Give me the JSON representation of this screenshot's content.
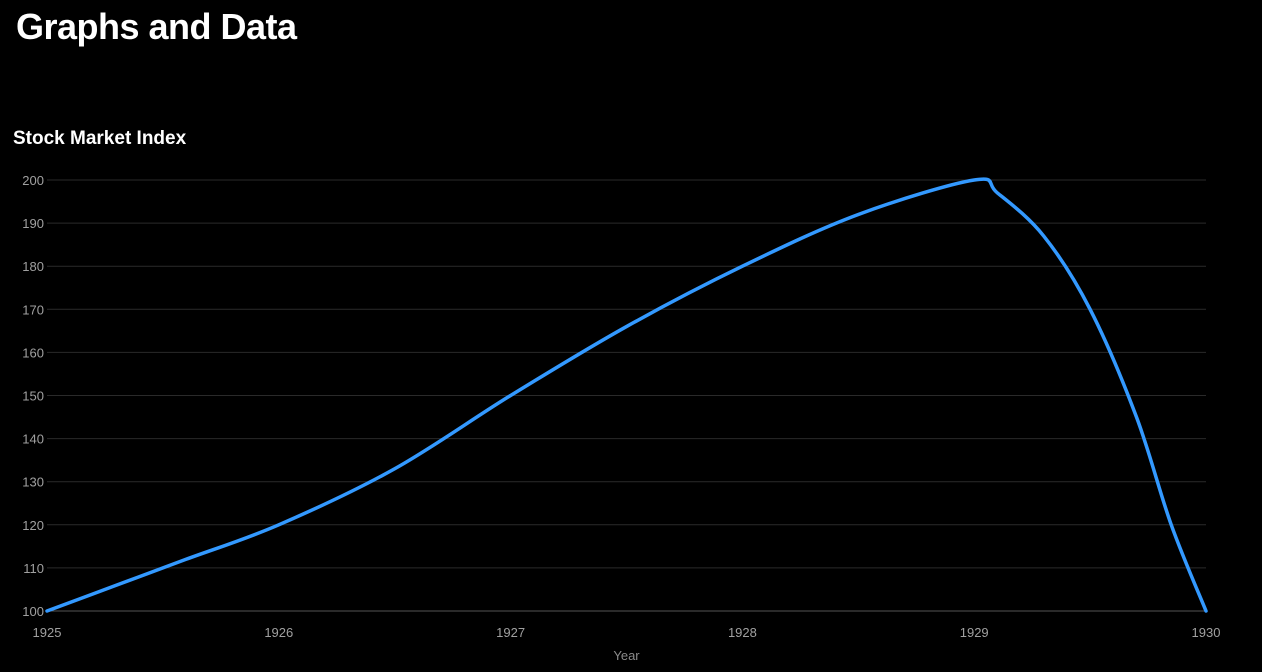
{
  "page": {
    "title": "Graphs and Data"
  },
  "colors": {
    "background": "#000000",
    "line": "#3399ff",
    "grid": "#2a2a2a",
    "tick_text": "#a0a0a0"
  },
  "chart_data": {
    "type": "line",
    "title": "Stock Market Index",
    "xlabel": "Year",
    "ylabel": "",
    "xlim": [
      1925,
      1930
    ],
    "ylim": [
      100,
      200
    ],
    "x_ticks": [
      1925,
      1926,
      1927,
      1928,
      1929,
      1930
    ],
    "y_ticks": [
      100,
      110,
      120,
      130,
      140,
      150,
      160,
      170,
      180,
      190,
      200
    ],
    "grid": true,
    "legend": "none",
    "series": [
      {
        "color": "#3399ff",
        "points": [
          {
            "x": 1925.0,
            "y": 100
          },
          {
            "x": 1925.3,
            "y": 106
          },
          {
            "x": 1925.6,
            "y": 112
          },
          {
            "x": 1926.0,
            "y": 120
          },
          {
            "x": 1926.5,
            "y": 133
          },
          {
            "x": 1927.0,
            "y": 150
          },
          {
            "x": 1927.5,
            "y": 166
          },
          {
            "x": 1928.0,
            "y": 180
          },
          {
            "x": 1928.5,
            "y": 192
          },
          {
            "x": 1929.0,
            "y": 200
          },
          {
            "x": 1929.1,
            "y": 197
          },
          {
            "x": 1929.3,
            "y": 187
          },
          {
            "x": 1929.5,
            "y": 170
          },
          {
            "x": 1929.7,
            "y": 145
          },
          {
            "x": 1929.85,
            "y": 120
          },
          {
            "x": 1930.0,
            "y": 100
          }
        ]
      }
    ]
  }
}
